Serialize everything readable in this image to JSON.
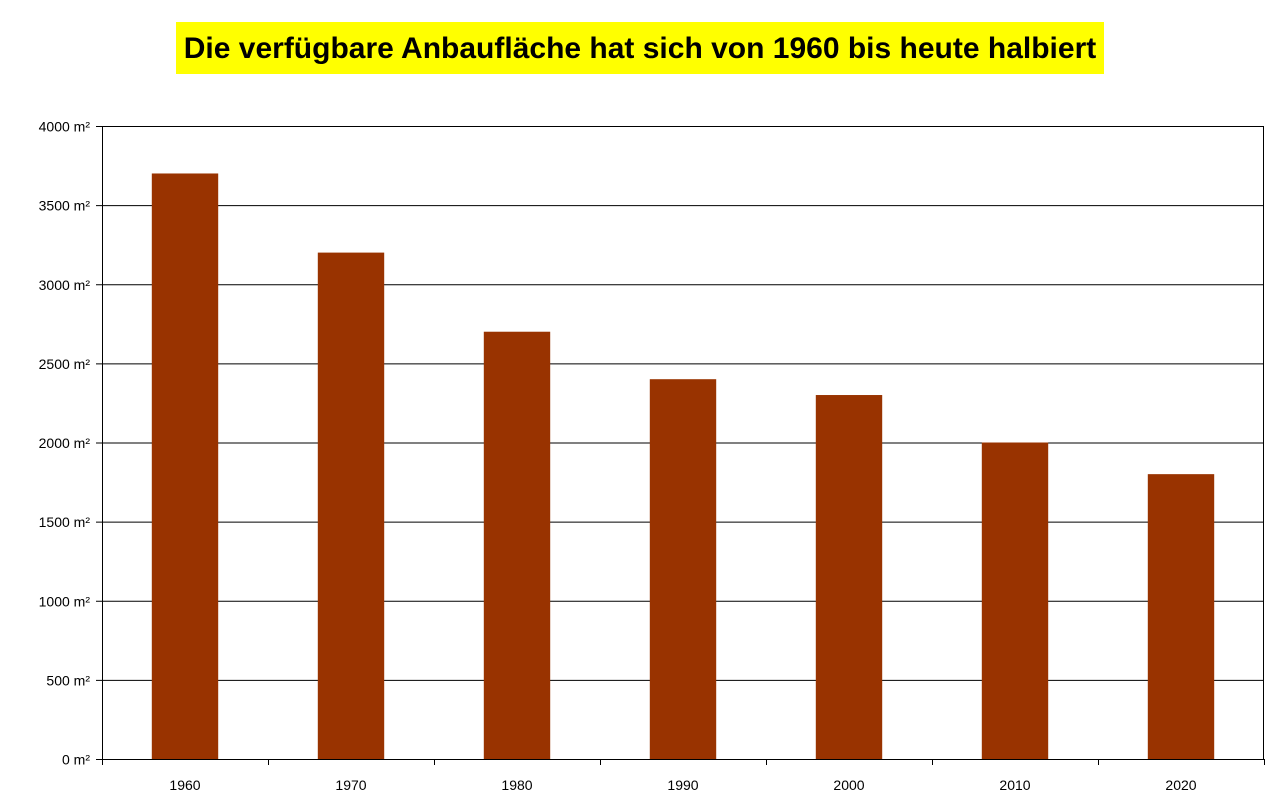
{
  "chart_data": {
    "type": "bar",
    "title": "Die verfügbare Anbaufläche hat sich von 1960 bis heute halbiert",
    "categories": [
      "1960",
      "1970",
      "1980",
      "1990",
      "2000",
      "2010",
      "2020"
    ],
    "values": [
      3700,
      3200,
      2700,
      2400,
      2300,
      2000,
      1800
    ],
    "unit": "m²",
    "ylim": [
      0,
      4000
    ],
    "yticks": [
      0,
      500,
      1000,
      1500,
      2000,
      2500,
      3000,
      3500,
      4000
    ],
    "ytick_labels": [
      "0 m²",
      "500 m²",
      "1000 m²",
      "1500 m²",
      "2000 m²",
      "2500 m²",
      "3000 m²",
      "3500 m²",
      "4000 m²"
    ],
    "xlabel": "",
    "ylabel": "",
    "grid": true,
    "legend": "none",
    "colors": {
      "bar": "#993300",
      "title_background": "#ffff00",
      "grid": "#000000"
    }
  }
}
